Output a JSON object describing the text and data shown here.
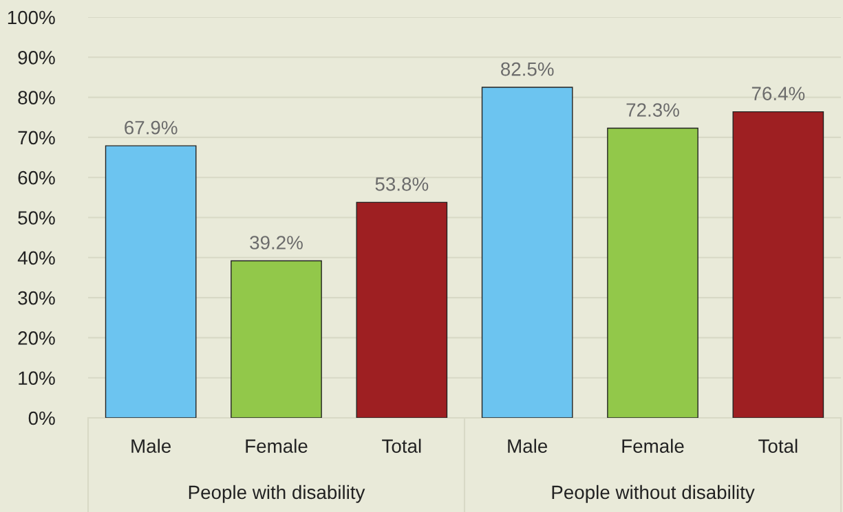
{
  "chart_data": {
    "type": "bar",
    "categories": [
      "Male",
      "Female",
      "Total",
      "Male",
      "Female",
      "Total"
    ],
    "values": [
      67.9,
      39.2,
      53.8,
      82.5,
      72.3,
      76.4
    ],
    "colors": [
      "#6cc4f0",
      "#92c84a",
      "#9e1f22",
      "#6cc4f0",
      "#92c84a",
      "#9e1f22"
    ],
    "value_labels": [
      "67.9%",
      "39.2%",
      "53.8%",
      "82.5%",
      "72.3%",
      "76.4%"
    ],
    "ylim": [
      0,
      100
    ],
    "yticks": [
      {
        "value": 0,
        "label": "0%"
      },
      {
        "value": 10,
        "label": "10%"
      },
      {
        "value": 20,
        "label": "20%"
      },
      {
        "value": 30,
        "label": "30%"
      },
      {
        "value": 40,
        "label": "40%"
      },
      {
        "value": 50,
        "label": "50%"
      },
      {
        "value": 60,
        "label": "60%"
      },
      {
        "value": 70,
        "label": "70%"
      },
      {
        "value": 80,
        "label": "80%"
      },
      {
        "value": 90,
        "label": "90%"
      },
      {
        "value": 100,
        "label": "100%"
      }
    ],
    "grid": "y",
    "annotations": [
      "People with disability",
      "People without disability"
    ]
  }
}
